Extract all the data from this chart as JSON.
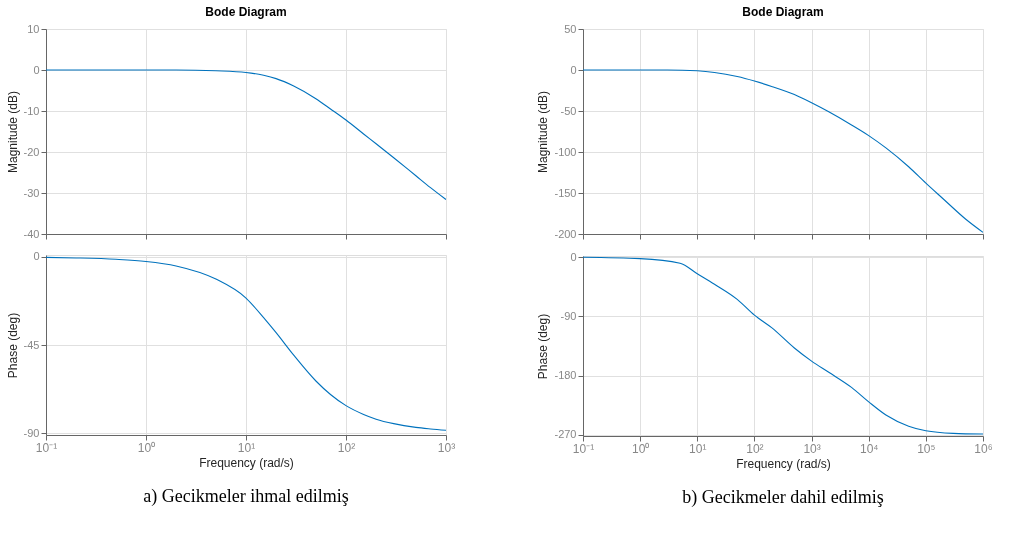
{
  "chart_data": [
    {
      "type": "line",
      "title": "Bode Diagram",
      "ylabel": "Magnitude (dB)",
      "x": [
        0.1,
        0.2,
        0.5,
        1,
        2,
        5,
        10,
        15,
        20,
        30,
        50,
        70,
        100,
        150,
        200,
        300,
        500,
        700,
        1000
      ],
      "series": [
        {
          "color": "#0072bd",
          "values": [
            0,
            0,
            0,
            0,
            0,
            -0.2,
            -0.6,
            -1.3,
            -2.1,
            -3.9,
            -7.0,
            -9.5,
            -12.2,
            -15.6,
            -18.0,
            -21.4,
            -25.8,
            -28.7,
            -31.6
          ]
        }
      ],
      "xlim": [
        0.1,
        1000
      ],
      "xticks": [
        {
          "value": 0.1,
          "label": null
        },
        {
          "value": 1,
          "label": null
        },
        {
          "value": 10,
          "label": null
        },
        {
          "value": 100,
          "label": null
        },
        {
          "value": 1000,
          "label": null
        }
      ],
      "ylim": [
        -40,
        10
      ],
      "yticks": [
        -40,
        -30,
        -20,
        -10,
        0,
        10
      ],
      "log": "x",
      "grid": true,
      "tick_labels": "y"
    },
    {
      "type": "line",
      "xlabel": "Frequency  (rad/s)",
      "ylabel": "Phase (deg)",
      "annotations": [
        "a) Gecikmeler ihmal edilmiş"
      ],
      "x": [
        0.1,
        0.2,
        0.5,
        1,
        2,
        5,
        10,
        15,
        20,
        30,
        50,
        70,
        100,
        150,
        200,
        300,
        500,
        700,
        1000
      ],
      "series": [
        {
          "color": "#0072bd",
          "values": [
            -0.2,
            -0.5,
            -1.2,
            -2.3,
            -4.6,
            -11.3,
            -21,
            -31,
            -38.7,
            -50.2,
            -63.4,
            -70.3,
            -76,
            -80.5,
            -82.9,
            -85.2,
            -87.1,
            -87.9,
            -88.6
          ]
        }
      ],
      "xlim": [
        0.1,
        1000
      ],
      "xticks": [
        {
          "value": 0.1,
          "label": "10⁻¹"
        },
        {
          "value": 1,
          "label": "10⁰"
        },
        {
          "value": 10,
          "label": "10¹"
        },
        {
          "value": 100,
          "label": "10²"
        },
        {
          "value": 1000,
          "label": "10³"
        }
      ],
      "ylim": [
        -91,
        1
      ],
      "yticks": [
        -90,
        -45,
        0
      ],
      "log": "x",
      "grid": true
    },
    {
      "type": "line",
      "title": "Bode Diagram",
      "ylabel": "Magnitude (dB)",
      "x": [
        0.1,
        1,
        3,
        10,
        20,
        50,
        100,
        200,
        500,
        1000,
        2000,
        5000,
        10000,
        20000,
        50000,
        100000,
        200000,
        500000,
        1000000
      ],
      "series": [
        {
          "color": "#0072bd",
          "values": [
            0,
            0,
            0,
            -1,
            -3,
            -8,
            -13.5,
            -20,
            -30,
            -40,
            -51,
            -67,
            -80,
            -95,
            -118,
            -138,
            -157,
            -182,
            -198
          ]
        }
      ],
      "xlim": [
        0.1,
        1000000
      ],
      "xticks": [
        {
          "value": 0.1,
          "label": null
        },
        {
          "value": 1,
          "label": null
        },
        {
          "value": 10,
          "label": null
        },
        {
          "value": 100,
          "label": null
        },
        {
          "value": 1000,
          "label": null
        },
        {
          "value": 10000,
          "label": null
        },
        {
          "value": 100000,
          "label": null
        },
        {
          "value": 1000000,
          "label": null
        }
      ],
      "ylim": [
        -200,
        50
      ],
      "yticks": [
        -200,
        -150,
        -100,
        -50,
        0,
        50
      ],
      "log": "x",
      "grid": true,
      "tick_labels": "y"
    },
    {
      "type": "line",
      "xlabel": "Frequency  (rad/s)",
      "ylabel": "Phase (deg)",
      "annotations": [
        "b) Gecikmeler dahil edilmiş"
      ],
      "x": [
        0.1,
        1,
        5,
        10,
        20,
        50,
        100,
        200,
        500,
        1000,
        2000,
        5000,
        10000,
        20000,
        50000,
        100000,
        300000,
        1000000
      ],
      "series": [
        {
          "color": "#0072bd",
          "values": [
            0,
            -2,
            -9,
            -25,
            -41,
            -64,
            -88,
            -107,
            -138,
            -158,
            -175,
            -198,
            -220,
            -240,
            -257,
            -264,
            -268,
            -269
          ]
        }
      ],
      "xlim": [
        0.1,
        1000000
      ],
      "xticks": [
        {
          "value": 0.1,
          "label": "10⁻¹"
        },
        {
          "value": 1,
          "label": "10⁰"
        },
        {
          "value": 10,
          "label": "10¹"
        },
        {
          "value": 100,
          "label": "10²"
        },
        {
          "value": 1000,
          "label": "10³"
        },
        {
          "value": 10000,
          "label": "10⁴"
        },
        {
          "value": 100000,
          "label": "10⁵"
        },
        {
          "value": 1000000,
          "label": "10⁶"
        }
      ],
      "ylim": [
        -272,
        2
      ],
      "yticks": [
        -270,
        -180,
        -90,
        0
      ],
      "log": "x",
      "grid": true
    }
  ]
}
